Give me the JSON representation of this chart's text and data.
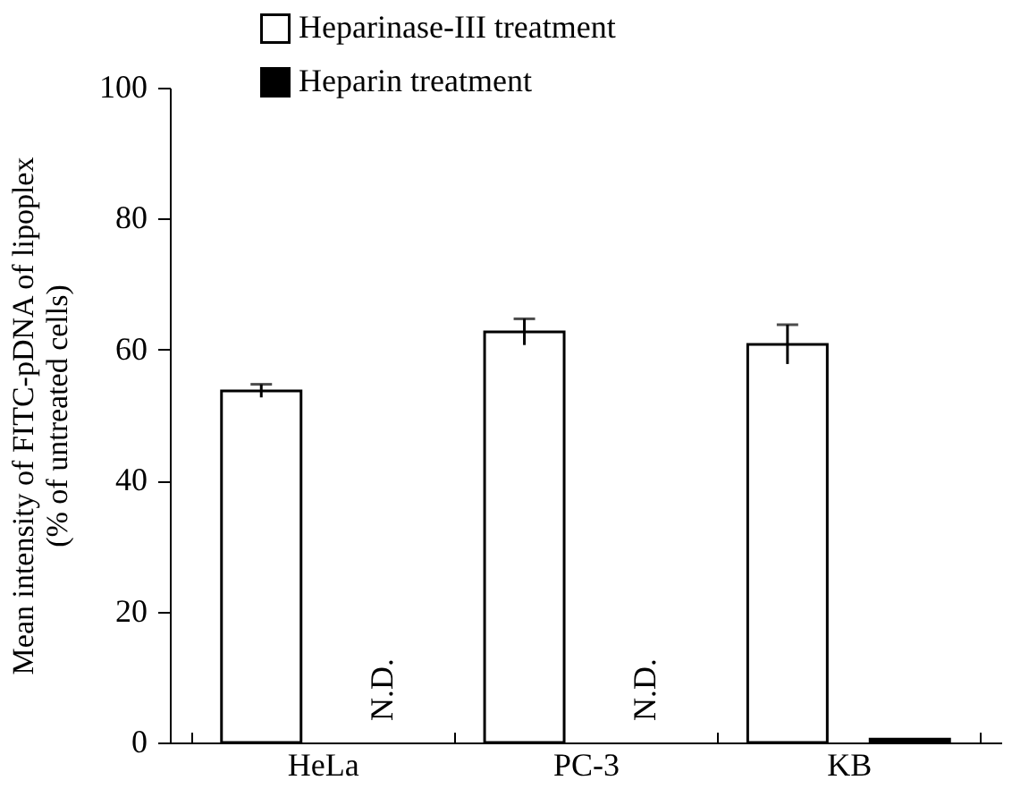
{
  "chart_data": {
    "type": "bar",
    "ylabel": "Mean intensity of FITC-pDNA of lipoplex\n(% of untreated cells)",
    "categories": [
      "HeLa",
      "PC-3",
      "KB"
    ],
    "series": [
      {
        "name": "Heparinase-III treatment",
        "color": "#ffffff",
        "values": [
          53.7,
          62.7,
          60.8
        ],
        "errors": [
          1,
          2,
          3
        ]
      },
      {
        "name": "Heparin treatment",
        "color": "#000000",
        "values": [
          null,
          null,
          0.5
        ],
        "value_labels": [
          "N.D.",
          "N.D.",
          null
        ]
      }
    ],
    "ylim": [
      0,
      100
    ],
    "yticks": [
      0,
      20,
      40,
      60,
      80,
      100
    ],
    "grid": false,
    "legend": "top"
  }
}
